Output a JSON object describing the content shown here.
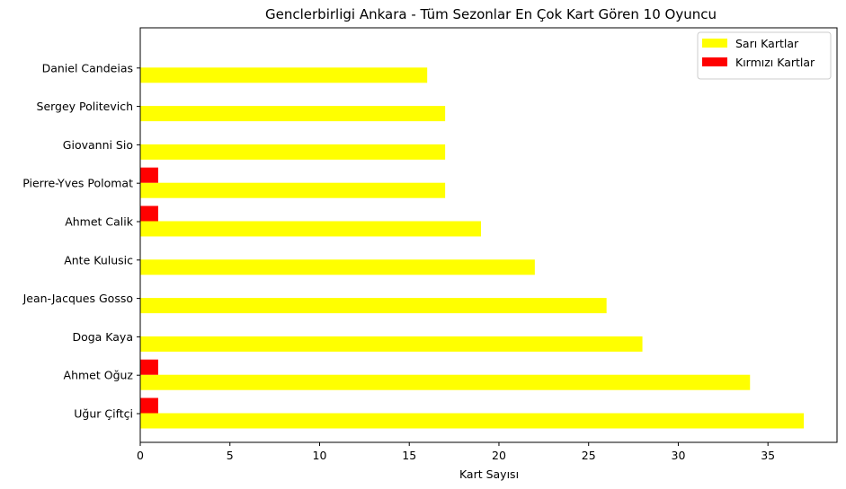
{
  "chart_data": {
    "type": "bar",
    "orientation": "horizontal",
    "title": "Genclerbirligi Ankara - Tüm Sezonlar En Çok Kart Gören 10 Oyuncu",
    "xlabel": "Kart Sayısı",
    "ylabel": "",
    "xlim": [
      0,
      38.85
    ],
    "xticks": [
      0,
      5,
      10,
      15,
      20,
      25,
      30,
      35
    ],
    "grid": false,
    "legend_position": "top-right",
    "categories": [
      "Uğur Çiftçi",
      "Ahmet Oğuz",
      "Doga Kaya",
      "Jean-Jacques Gosso",
      "Ante Kulusic",
      "Ahmet Calik",
      "Pierre-Yves Polomat",
      "Giovanni Sio",
      "Sergey Politevich",
      "Daniel Candeias"
    ],
    "series": [
      {
        "name": "Sarı Kartlar",
        "color": "#ffff00",
        "values": [
          37,
          34,
          28,
          26,
          22,
          19,
          17,
          17,
          17,
          16
        ]
      },
      {
        "name": "Kırmızı Kartlar",
        "color": "#ff0000",
        "values": [
          1,
          1,
          0,
          0,
          0,
          1,
          1,
          0,
          0,
          0
        ]
      }
    ]
  }
}
